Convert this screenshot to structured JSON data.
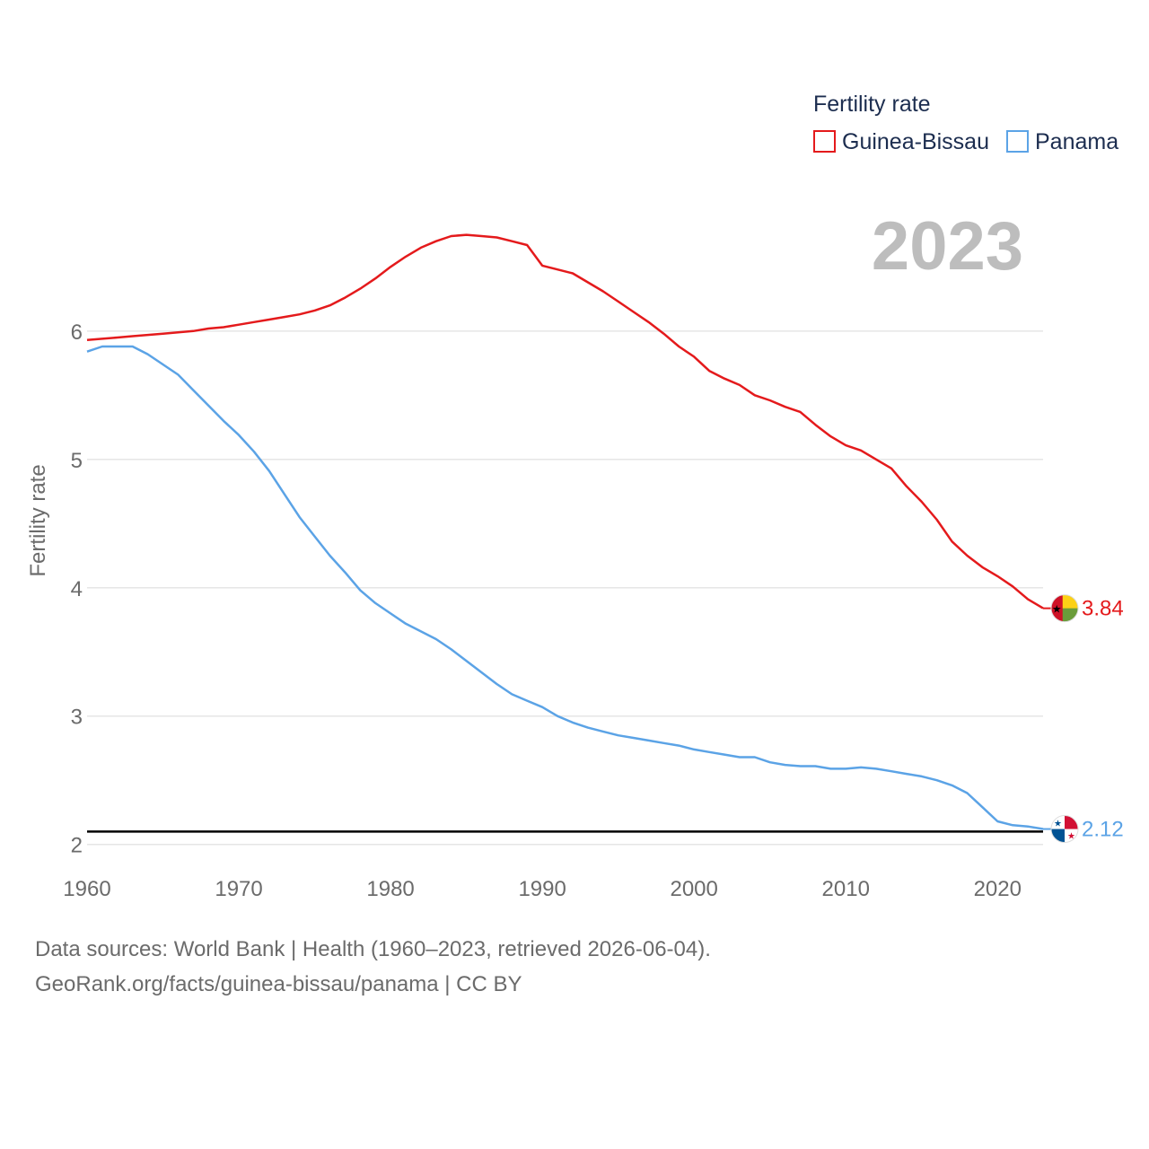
{
  "chart_data": {
    "type": "line",
    "title": "Fertility rate",
    "ylabel": "Fertility rate",
    "xlabel": "",
    "year_label": "2023",
    "xlim": [
      1960,
      2023
    ],
    "ylim": [
      1.9,
      6.95
    ],
    "x_ticks": [
      1960,
      1970,
      1980,
      1990,
      2000,
      2010,
      2020
    ],
    "y_ticks": [
      2,
      3,
      4,
      5,
      6
    ],
    "reference_line": 2.1,
    "x": [
      1960,
      1961,
      1962,
      1963,
      1964,
      1965,
      1966,
      1967,
      1968,
      1969,
      1970,
      1971,
      1972,
      1973,
      1974,
      1975,
      1976,
      1977,
      1978,
      1979,
      1980,
      1981,
      1982,
      1983,
      1984,
      1985,
      1986,
      1987,
      1988,
      1989,
      1990,
      1991,
      1992,
      1993,
      1994,
      1995,
      1996,
      1997,
      1998,
      1999,
      2000,
      2001,
      2002,
      2003,
      2004,
      2005,
      2006,
      2007,
      2008,
      2009,
      2010,
      2011,
      2012,
      2013,
      2014,
      2015,
      2016,
      2017,
      2018,
      2019,
      2020,
      2021,
      2022,
      2023
    ],
    "series": [
      {
        "name": "Guinea-Bissau",
        "color": "#e41a1c",
        "end_label": "3.84",
        "flag": "guinea-bissau-flag",
        "values": [
          5.93,
          5.94,
          5.95,
          5.96,
          5.97,
          5.98,
          5.99,
          6.0,
          6.02,
          6.03,
          6.05,
          6.07,
          6.09,
          6.11,
          6.13,
          6.16,
          6.2,
          6.26,
          6.33,
          6.41,
          6.5,
          6.58,
          6.65,
          6.7,
          6.74,
          6.75,
          6.74,
          6.73,
          6.7,
          6.67,
          6.51,
          6.48,
          6.45,
          6.38,
          6.31,
          6.23,
          6.15,
          6.07,
          5.98,
          5.88,
          5.8,
          5.69,
          5.63,
          5.58,
          5.5,
          5.46,
          5.41,
          5.37,
          5.27,
          5.18,
          5.11,
          5.07,
          5.0,
          4.93,
          4.79,
          4.67,
          4.53,
          4.36,
          4.25,
          4.16,
          4.09,
          4.01,
          3.91,
          3.84
        ]
      },
      {
        "name": "Panama",
        "color": "#5ba3e6",
        "end_label": "2.12",
        "flag": "panama-flag",
        "values": [
          5.84,
          5.88,
          5.88,
          5.88,
          5.82,
          5.74,
          5.66,
          5.54,
          5.42,
          5.3,
          5.19,
          5.06,
          4.91,
          4.73,
          4.55,
          4.4,
          4.25,
          4.12,
          3.98,
          3.88,
          3.8,
          3.72,
          3.66,
          3.6,
          3.52,
          3.43,
          3.34,
          3.25,
          3.17,
          3.12,
          3.07,
          3.0,
          2.95,
          2.91,
          2.88,
          2.85,
          2.83,
          2.81,
          2.79,
          2.77,
          2.74,
          2.72,
          2.7,
          2.68,
          2.68,
          2.64,
          2.62,
          2.61,
          2.61,
          2.59,
          2.59,
          2.6,
          2.59,
          2.57,
          2.55,
          2.53,
          2.5,
          2.46,
          2.4,
          2.29,
          2.18,
          2.15,
          2.14,
          2.12
        ]
      }
    ]
  },
  "footer": {
    "sources": "Data sources: World Bank | Health (1960–2023, retrieved 2026-06-04).",
    "credit": "GeoRank.org/facts/guinea-bissau/panama | CC BY"
  }
}
